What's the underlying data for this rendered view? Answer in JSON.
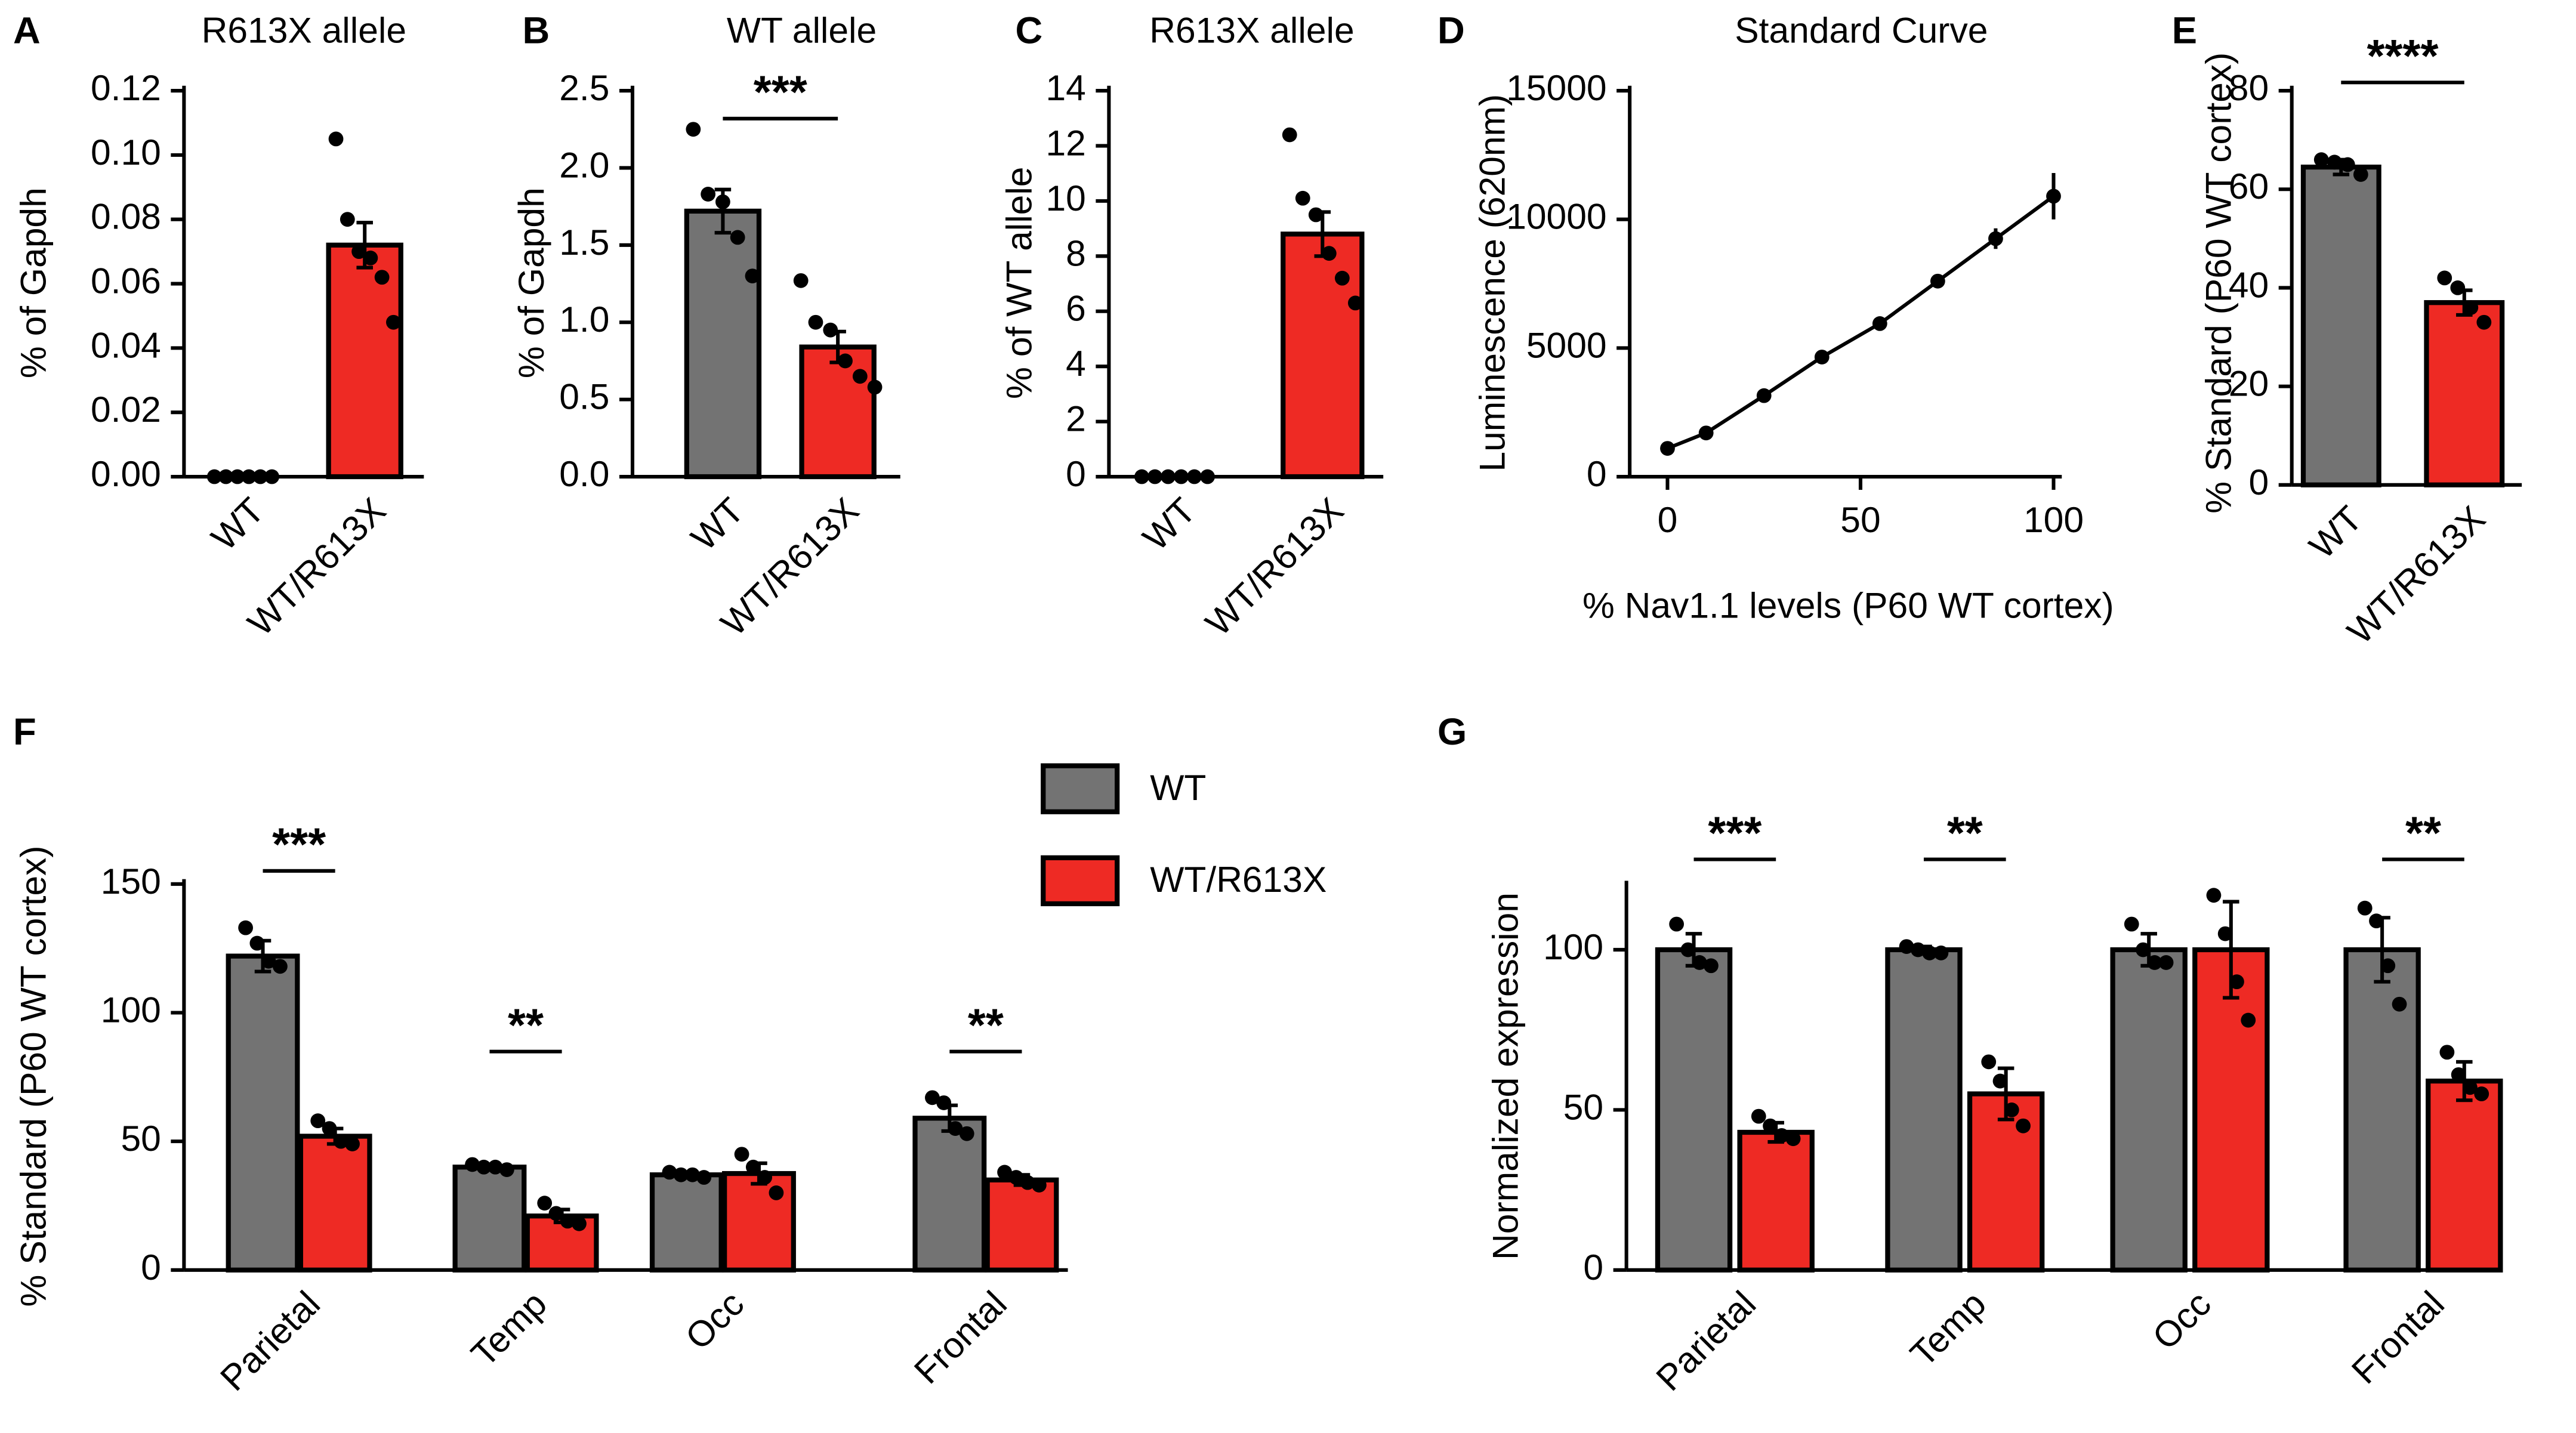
{
  "chart_data": [
    {
      "type": "bar",
      "panel": "A",
      "title": "R613X allele",
      "ylabel": "% of Gapdh",
      "categories": [
        "WT",
        "WT/R613X"
      ],
      "colors": [
        "#737373",
        "#ee2a24"
      ],
      "values": [
        0,
        0.072
      ],
      "errors": [
        0,
        0.007
      ],
      "points": [
        [
          0,
          0,
          0,
          0,
          0,
          0
        ],
        [
          0.105,
          0.08,
          0.07,
          0.068,
          0.062,
          0.048
        ]
      ],
      "ylim": [
        0,
        0.12
      ],
      "yticks": [
        {
          "value": 0,
          "label": "0.00"
        },
        {
          "value": 0.02,
          "label": "0.02"
        },
        {
          "value": 0.04,
          "label": "0.04"
        },
        {
          "value": 0.06,
          "label": "0.06"
        },
        {
          "value": 0.08,
          "label": "0.08"
        },
        {
          "value": 0.1,
          "label": "0.10"
        },
        {
          "value": 0.12,
          "label": "0.12"
        }
      ]
    },
    {
      "type": "bar",
      "panel": "B",
      "title": "WT allele",
      "ylabel": "% of Gapdh",
      "categories": [
        "WT",
        "WT/R613X"
      ],
      "colors": [
        "#737373",
        "#ee2a24"
      ],
      "values": [
        1.72,
        0.84
      ],
      "errors": [
        0.14,
        0.1
      ],
      "points": [
        [
          2.25,
          1.83,
          1.78,
          1.55,
          1.3
        ],
        [
          1.27,
          1.0,
          0.95,
          0.75,
          0.65,
          0.58
        ]
      ],
      "ylim": [
        0,
        2.5
      ],
      "yticks": [
        {
          "value": 0,
          "label": "0.0"
        },
        0.5,
        {
          "value": 1,
          "label": "1.0"
        },
        1.5,
        {
          "value": 2,
          "label": "2.0"
        },
        2.5
      ],
      "annotations": [
        {
          "label": "***"
        }
      ]
    },
    {
      "type": "bar",
      "panel": "C",
      "title": "R613X allele",
      "ylabel": "% of WT allele",
      "categories": [
        "WT",
        "WT/R613X"
      ],
      "colors": [
        "#737373",
        "#ee2a24"
      ],
      "values": [
        0,
        8.8
      ],
      "errors": [
        0,
        0.8
      ],
      "points": [
        [
          0,
          0,
          0,
          0,
          0,
          0
        ],
        [
          12.4,
          10.1,
          9.5,
          8.1,
          7.2,
          6.3
        ]
      ],
      "ylim": [
        0,
        14
      ],
      "yticks": [
        0,
        2,
        4,
        6,
        8,
        10,
        12,
        14
      ]
    },
    {
      "type": "line",
      "panel": "D",
      "title": "Standard Curve",
      "ylabel": "Luminescence (620nm)",
      "xlabel": "% Nav1.1 levels (P60 WT cortex)",
      "x": [
        0,
        10,
        25,
        40,
        55,
        70,
        85,
        100
      ],
      "values": [
        1100,
        1700,
        3150,
        4650,
        5950,
        7600,
        9250,
        10900
      ],
      "errors": [
        200,
        150,
        150,
        150,
        200,
        250,
        400,
        900
      ],
      "color": "#000000",
      "xlim": [
        0,
        100
      ],
      "xticks": [
        0,
        50,
        100
      ],
      "ylim": [
        0,
        15000
      ],
      "yticks": [
        0,
        5000,
        10000,
        15000
      ]
    },
    {
      "type": "bar",
      "panel": "E",
      "ylabel": "% Standard (P60 WT cortex)",
      "categories": [
        "WT",
        "WT/R613X"
      ],
      "colors": [
        "#737373",
        "#ee2a24"
      ],
      "values": [
        64.5,
        37
      ],
      "errors": [
        1.5,
        2.5
      ],
      "points": [
        [
          66,
          65.5,
          65,
          63
        ],
        [
          42,
          40,
          36,
          33
        ]
      ],
      "ylim": [
        0,
        80
      ],
      "yticks": [
        0,
        20,
        40,
        60,
        80
      ],
      "annotations": [
        {
          "label": "****"
        }
      ]
    },
    {
      "type": "bar",
      "panel": "F",
      "ylabel": "% Standard (P60 WT cortex)",
      "categories": [
        "Parietal",
        "Temp",
        "Occ",
        "Frontal"
      ],
      "legend": true,
      "series": [
        {
          "name": "WT",
          "color": "#737373",
          "values": [
            122,
            40,
            37,
            59
          ],
          "errors": [
            6,
            1,
            1,
            5
          ],
          "points": [
            [
              133,
              127,
              120,
              118
            ],
            [
              41,
              40,
              40,
              39
            ],
            [
              38,
              37,
              37,
              36
            ],
            [
              67,
              65,
              55,
              53
            ]
          ]
        },
        {
          "name": "WT/R613X",
          "color": "#ee2a24",
          "values": [
            52,
            21,
            37.5,
            35
          ],
          "errors": [
            3,
            2.5,
            4,
            2
          ],
          "points": [
            [
              58,
              55,
              50,
              49
            ],
            [
              26,
              22,
              19,
              18
            ],
            [
              45,
              40,
              36,
              30
            ],
            [
              38,
              36,
              34,
              33
            ]
          ]
        }
      ],
      "ylim": [
        0,
        150
      ],
      "yticks": [
        0,
        50,
        100,
        150
      ],
      "annotations": [
        {
          "category": "Parietal",
          "label": "***"
        },
        {
          "category": "Temp",
          "label": "**"
        },
        {
          "category": "Frontal",
          "label": "**"
        }
      ]
    },
    {
      "type": "bar",
      "panel": "G",
      "ylabel": "Normalized expression",
      "categories": [
        "Parietal",
        "Temp",
        "Occ",
        "Frontal"
      ],
      "series": [
        {
          "name": "WT",
          "color": "#737373",
          "values": [
            100,
            100,
            100,
            100
          ],
          "errors": [
            5,
            1,
            5,
            10
          ],
          "points": [
            [
              108,
              100,
              96,
              95
            ],
            [
              101,
              100,
              99,
              99
            ],
            [
              108,
              100,
              96,
              96
            ],
            [
              113,
              109,
              95,
              83
            ]
          ]
        },
        {
          "name": "WT/R613X",
          "color": "#ee2a24",
          "values": [
            43,
            55,
            100,
            59
          ],
          "errors": [
            3,
            8,
            15,
            6
          ],
          "points": [
            [
              48,
              45,
              42,
              41
            ],
            [
              65,
              59,
              50,
              45
            ],
            [
              117,
              105,
              90,
              78
            ],
            [
              68,
              61,
              57,
              55
            ]
          ]
        }
      ],
      "ylim": [
        0,
        120
      ],
      "yticks": [
        0,
        50,
        100
      ],
      "annotations": [
        {
          "category": "Parietal",
          "label": "***"
        },
        {
          "category": "Temp",
          "label": "**"
        },
        {
          "category": "Frontal",
          "label": "**"
        }
      ]
    }
  ]
}
